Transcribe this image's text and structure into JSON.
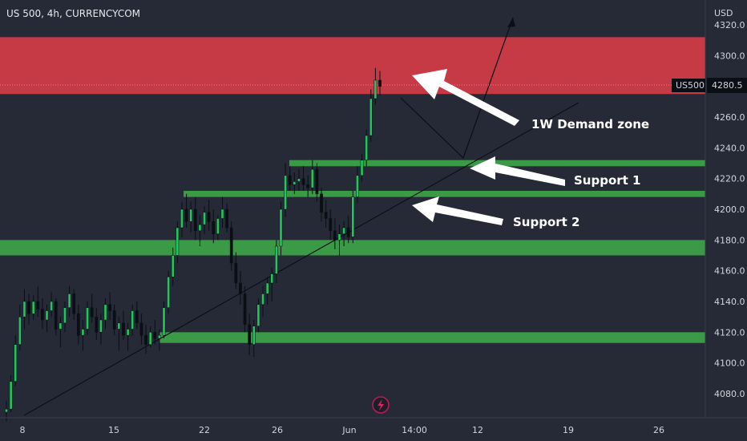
{
  "chart_data": {
    "type": "candlestick",
    "title": "US 500, 4h, CURRENCYCOM",
    "currency": "USD",
    "symbol_tag": "US500",
    "last_price": "4280.5",
    "price_range": [
      4060,
      4330
    ],
    "price_ticks": [
      "4320.0",
      "4300.0",
      "4280.0",
      "4260.0",
      "4240.0",
      "4220.0",
      "4200.0",
      "4180.0",
      "4160.0",
      "4140.0",
      "4120.0",
      "4100.0",
      "4080.0"
    ],
    "time_ticks": [
      "8",
      "15",
      "22",
      "26",
      "Jun",
      "14:00",
      "12",
      "19",
      "26"
    ],
    "zones": [
      {
        "kind": "resistance",
        "from": 4275,
        "to": 4312,
        "color": "#c53a44"
      },
      {
        "kind": "support",
        "from": 4228,
        "to": 4232,
        "color": "#3a9a45"
      },
      {
        "kind": "support",
        "from": 4208,
        "to": 4212,
        "color": "#3a9a45"
      },
      {
        "kind": "support",
        "from": 4170,
        "to": 4180,
        "color": "#3a9a45"
      },
      {
        "kind": "support",
        "from": 4113,
        "to": 4120,
        "color": "#3a9a45"
      }
    ],
    "annotations": [
      {
        "id": "demand",
        "text": "1W Demand zone"
      },
      {
        "id": "sup1",
        "text": "Support 1"
      },
      {
        "id": "sup2",
        "text": "Support 2"
      }
    ],
    "candles": [
      [
        4068,
        4075,
        4062,
        4070
      ],
      [
        4070,
        4092,
        4068,
        4088
      ],
      [
        4088,
        4118,
        4085,
        4112
      ],
      [
        4112,
        4138,
        4108,
        4130
      ],
      [
        4130,
        4148,
        4122,
        4140
      ],
      [
        4140,
        4145,
        4125,
        4132
      ],
      [
        4132,
        4144,
        4128,
        4140
      ],
      [
        4140,
        4150,
        4130,
        4135
      ],
      [
        4135,
        4142,
        4122,
        4128
      ],
      [
        4128,
        4138,
        4120,
        4134
      ],
      [
        4134,
        4146,
        4130,
        4140
      ],
      [
        4140,
        4142,
        4118,
        4122
      ],
      [
        4122,
        4130,
        4110,
        4126
      ],
      [
        4126,
        4140,
        4120,
        4136
      ],
      [
        4136,
        4150,
        4130,
        4145
      ],
      [
        4145,
        4148,
        4128,
        4132
      ],
      [
        4132,
        4138,
        4112,
        4118
      ],
      [
        4118,
        4128,
        4108,
        4122
      ],
      [
        4122,
        4140,
        4118,
        4136
      ],
      [
        4136,
        4145,
        4126,
        4130
      ],
      [
        4130,
        4136,
        4115,
        4120
      ],
      [
        4120,
        4132,
        4112,
        4128
      ],
      [
        4128,
        4142,
        4122,
        4138
      ],
      [
        4138,
        4146,
        4128,
        4134
      ],
      [
        4134,
        4138,
        4118,
        4122
      ],
      [
        4122,
        4130,
        4108,
        4126
      ],
      [
        4126,
        4134,
        4115,
        4118
      ],
      [
        4118,
        4126,
        4108,
        4122
      ],
      [
        4122,
        4138,
        4118,
        4134
      ],
      [
        4134,
        4140,
        4122,
        4126
      ],
      [
        4126,
        4132,
        4112,
        4118
      ],
      [
        4118,
        4125,
        4106,
        4112
      ],
      [
        4112,
        4124,
        4110,
        4120
      ],
      [
        4120,
        4128,
        4112,
        4116
      ],
      [
        4116,
        4122,
        4108,
        4118
      ],
      [
        4118,
        4140,
        4116,
        4136
      ],
      [
        4136,
        4160,
        4132,
        4156
      ],
      [
        4156,
        4175,
        4150,
        4170
      ],
      [
        4170,
        4192,
        4165,
        4188
      ],
      [
        4188,
        4205,
        4182,
        4200
      ],
      [
        4200,
        4210,
        4188,
        4192
      ],
      [
        4192,
        4205,
        4185,
        4200
      ],
      [
        4200,
        4208,
        4180,
        4186
      ],
      [
        4186,
        4196,
        4176,
        4190
      ],
      [
        4190,
        4202,
        4184,
        4198
      ],
      [
        4198,
        4206,
        4186,
        4192
      ],
      [
        4192,
        4200,
        4178,
        4184
      ],
      [
        4184,
        4196,
        4180,
        4194
      ],
      [
        4194,
        4208,
        4188,
        4200
      ],
      [
        4200,
        4204,
        4185,
        4188
      ],
      [
        4188,
        4192,
        4160,
        4165
      ],
      [
        4165,
        4172,
        4148,
        4152
      ],
      [
        4152,
        4160,
        4138,
        4145
      ],
      [
        4145,
        4150,
        4120,
        4125
      ],
      [
        4125,
        4132,
        4105,
        4112
      ],
      [
        4112,
        4128,
        4104,
        4124
      ],
      [
        4124,
        4142,
        4120,
        4138
      ],
      [
        4138,
        4150,
        4130,
        4145
      ],
      [
        4145,
        4156,
        4138,
        4152
      ],
      [
        4152,
        4162,
        4140,
        4158
      ],
      [
        4158,
        4180,
        4152,
        4176
      ],
      [
        4176,
        4205,
        4170,
        4200
      ],
      [
        4200,
        4230,
        4195,
        4222
      ],
      [
        4222,
        4228,
        4212,
        4216
      ],
      [
        4216,
        4224,
        4210,
        4218
      ],
      [
        4218,
        4226,
        4212,
        4220
      ],
      [
        4220,
        4228,
        4212,
        4216
      ],
      [
        4216,
        4222,
        4208,
        4214
      ],
      [
        4214,
        4232,
        4210,
        4226
      ],
      [
        4226,
        4230,
        4205,
        4210
      ],
      [
        4210,
        4214,
        4192,
        4198
      ],
      [
        4198,
        4206,
        4188,
        4194
      ],
      [
        4194,
        4200,
        4180,
        4186
      ],
      [
        4186,
        4194,
        4174,
        4180
      ],
      [
        4180,
        4190,
        4170,
        4184
      ],
      [
        4184,
        4192,
        4176,
        4188
      ],
      [
        4188,
        4196,
        4178,
        4182
      ],
      [
        4182,
        4212,
        4178,
        4208
      ],
      [
        4208,
        4228,
        4204,
        4222
      ],
      [
        4222,
        4236,
        4218,
        4232
      ],
      [
        4232,
        4252,
        4228,
        4248
      ],
      [
        4248,
        4278,
        4244,
        4272
      ],
      [
        4272,
        4292,
        4268,
        4284
      ],
      [
        4284,
        4290,
        4274,
        4280
      ]
    ]
  }
}
